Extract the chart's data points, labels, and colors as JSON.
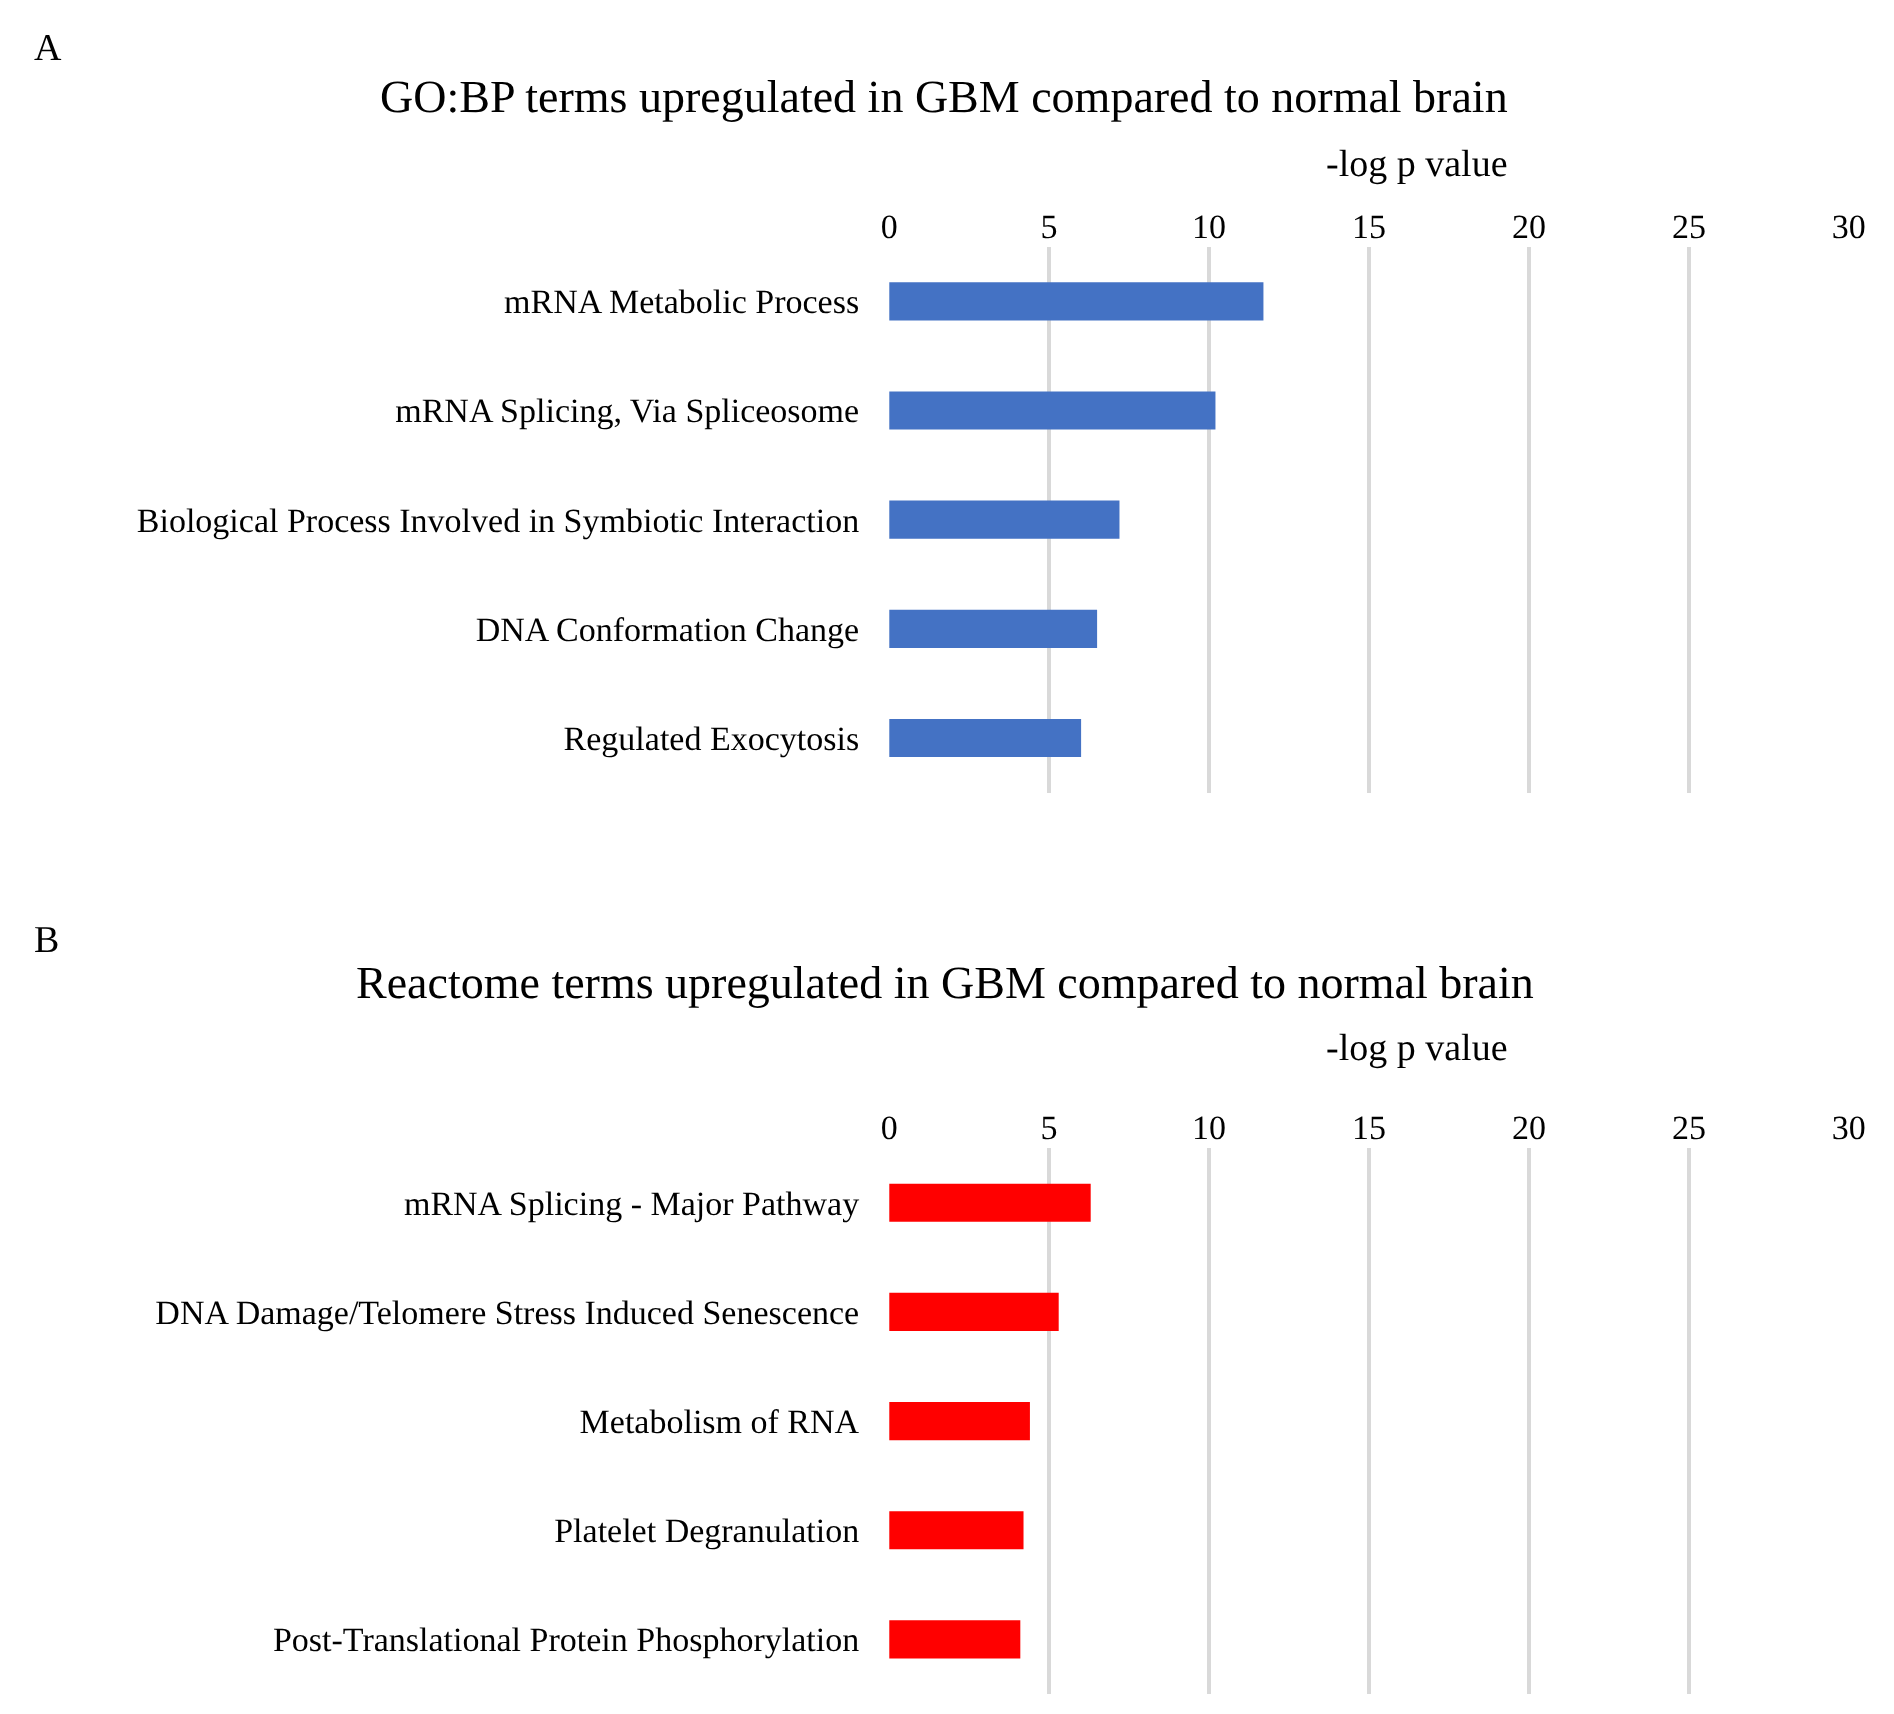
{
  "chart_data": [
    {
      "type": "bar",
      "orientation": "horizontal",
      "title": "GO:BP terms upregulated in GBM compared to normal brain",
      "xlabel": "-log p value",
      "annotations": [
        "A"
      ],
      "categories": [
        "mRNA Metabolic Process",
        "mRNA Splicing, Via Spliceosome",
        "Biological Process Involved in Symbiotic Interaction",
        "DNA Conformation Change",
        "Regulated Exocytosis"
      ],
      "values": [
        11.7,
        10.2,
        7.2,
        6.5,
        6.0
      ],
      "color": "#4472c4",
      "xlim": [
        0,
        30
      ],
      "xticks": [
        0,
        5,
        10,
        15,
        20,
        25,
        30
      ],
      "grid": "x"
    },
    {
      "type": "bar",
      "orientation": "horizontal",
      "title": "Reactome terms upregulated in GBM compared to normal brain",
      "xlabel": "-log p value",
      "annotations": [
        "B"
      ],
      "categories": [
        "mRNA Splicing - Major Pathway",
        "DNA Damage/Telomere Stress Induced Senescence",
        "Metabolism of RNA",
        "Platelet Degranulation",
        "Post-Translational Protein Phosphorylation"
      ],
      "values": [
        6.3,
        5.3,
        4.4,
        4.2,
        4.1
      ],
      "color": "#ff0000",
      "xlim": [
        0,
        30
      ],
      "xticks": [
        0,
        5,
        10,
        15,
        20,
        25,
        30
      ],
      "grid": "x"
    }
  ]
}
